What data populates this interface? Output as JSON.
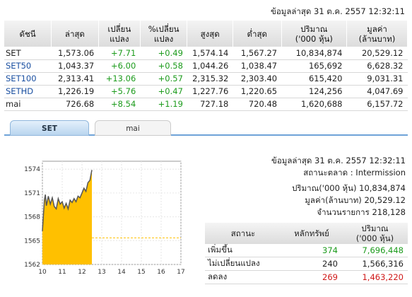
{
  "as_of": "ข้อมูลล่าสุด 31 ต.ค. 2557 12:32:11",
  "index_table": {
    "headers": [
      "ดัชนี",
      "ล่าสุด",
      "เปลี่ยน\nแปลง",
      "%เปลี่ยน\nแปลง",
      "สูงสุด",
      "ต่ำสุด",
      "ปริมาณ\n('000 หุ้น)",
      "มูลค่า\n(ล้านบาท)"
    ],
    "rows": [
      {
        "name": "SET",
        "last": "1,573.06",
        "chg": "+7.71",
        "pct": "+0.49",
        "high": "1,574.14",
        "low": "1,567.27",
        "vol": "10,834,874",
        "val": "20,529.12",
        "link": false
      },
      {
        "name": "SET50",
        "last": "1,043.37",
        "chg": "+6.00",
        "pct": "+0.58",
        "high": "1,044.26",
        "low": "1,038.47",
        "vol": "165,692",
        "val": "6,628.32",
        "link": true
      },
      {
        "name": "SET100",
        "last": "2,313.41",
        "chg": "+13.06",
        "pct": "+0.57",
        "high": "2,315.32",
        "low": "2,303.40",
        "vol": "615,420",
        "val": "9,031.31",
        "link": true
      },
      {
        "name": "SETHD",
        "last": "1,226.19",
        "chg": "+5.76",
        "pct": "+0.47",
        "high": "1,227.76",
        "low": "1,220.65",
        "vol": "124,256",
        "val": "4,047.69",
        "link": true
      },
      {
        "name": "mai",
        "last": "726.68",
        "chg": "+8.54",
        "pct": "+1.19",
        "high": "727.18",
        "low": "720.48",
        "vol": "1,620,688",
        "val": "6,157.72",
        "link": false
      }
    ]
  },
  "tabs": [
    {
      "label": "SET",
      "active": true
    },
    {
      "label": "mai",
      "active": false
    }
  ],
  "market_info": {
    "as_of": "ข้อมูลล่าสุด 31 ต.ค. 2557 12:32:11",
    "status_label": "สถานะตลาด :",
    "status_value": "Intermission",
    "volume_label": "ปริมาณ('000 หุ้น)",
    "volume_value": "10,834,874",
    "value_label": "มูลค่า(ล้านบาท)",
    "value_value": "20,529.12",
    "trades_label": "จำนวนรายการ",
    "trades_value": "218,128"
  },
  "breadth_table": {
    "headers": [
      "สถานะ",
      "หลักทรัพย์",
      "ปริมาณ\n('000 หุ้น)"
    ],
    "rows": [
      {
        "label": "เพิ่มขึ้น",
        "count": "374",
        "vol": "7,696,448",
        "color": "#1c9b1c"
      },
      {
        "label": "ไม่เปลี่ยนแปลง",
        "count": "240",
        "vol": "1,566,316",
        "color": "#222222"
      },
      {
        "label": "ลดลง",
        "count": "269",
        "vol": "1,463,220",
        "color": "#d01818"
      }
    ]
  },
  "chart_data": {
    "type": "area",
    "ylim": [
      1562,
      1575
    ],
    "xlim": [
      10,
      17
    ],
    "x_ticks": [
      "10",
      "11",
      "12",
      "13",
      "14",
      "15",
      "16",
      "17"
    ],
    "y_ticks": [
      "1574",
      "1571",
      "1568",
      "1565",
      "1562"
    ],
    "prev_close": 1565.35,
    "x": [
      10.0,
      10.1,
      10.15,
      10.2,
      10.3,
      10.4,
      10.5,
      10.6,
      10.7,
      10.8,
      10.9,
      11.0,
      11.1,
      11.2,
      11.3,
      11.4,
      11.5,
      11.6,
      11.7,
      11.8,
      11.9,
      12.0,
      12.1,
      12.2,
      12.3,
      12.4,
      12.5
    ],
    "y": [
      1566.2,
      1570.1,
      1570.8,
      1569.4,
      1570.6,
      1569.6,
      1570.4,
      1569.3,
      1569.0,
      1570.3,
      1569.6,
      1569.9,
      1569.1,
      1569.7,
      1569.0,
      1570.1,
      1569.8,
      1570.3,
      1569.9,
      1570.6,
      1570.4,
      1571.0,
      1571.6,
      1571.2,
      1572.3,
      1572.6,
      1573.9
    ],
    "fill_color": "#ffc000",
    "line_color": "#555555",
    "ref_line_color": "#ffc000"
  }
}
